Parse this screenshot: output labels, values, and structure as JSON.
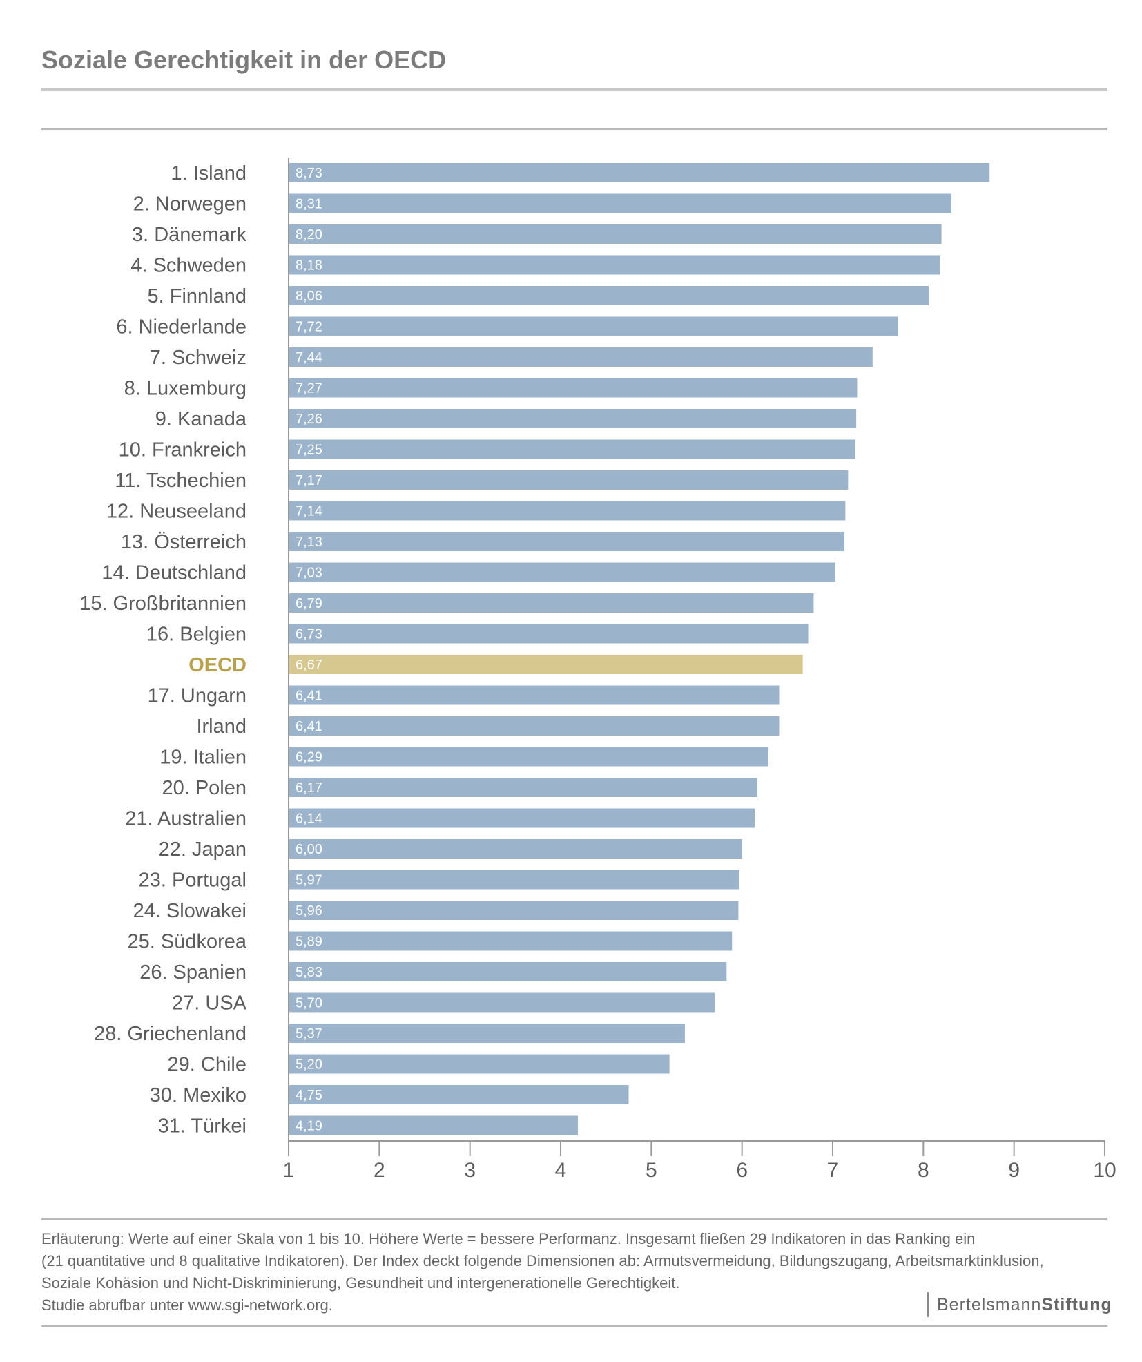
{
  "title": "Soziale Gerechtigkeit in der OECD",
  "colors": {
    "bar": "#9bb4cc",
    "highlight": "#d7c890",
    "highlight_text": "#b9a14c",
    "label": "#5b5b5b",
    "value_text": "#ffffff",
    "axis": "#9a9a9a"
  },
  "chart_data": {
    "type": "bar",
    "orientation": "horizontal",
    "categories": [
      "1. Island",
      "2. Norwegen",
      "3. Dänemark",
      "4. Schweden",
      "5. Finnland",
      "6. Niederlande",
      "7. Schweiz",
      "8. Luxemburg",
      "9. Kanada",
      "10. Frankreich",
      "11. Tschechien",
      "12. Neuseeland",
      "13. Österreich",
      "14. Deutschland",
      "15. Großbritannien",
      "16. Belgien",
      "OECD",
      "17. Ungarn",
      "Irland",
      "19. Italien",
      "20. Polen",
      "21. Australien",
      "22. Japan",
      "23. Portugal",
      "24. Slowakei",
      "25. Südkorea",
      "26. Spanien",
      "27. USA",
      "28. Griechenland",
      "29. Chile",
      "30. Mexiko",
      "31. Türkei"
    ],
    "values": [
      8.73,
      8.31,
      8.2,
      8.18,
      8.06,
      7.72,
      7.44,
      7.27,
      7.26,
      7.25,
      7.17,
      7.14,
      7.13,
      7.03,
      6.79,
      6.73,
      6.67,
      6.41,
      6.41,
      6.29,
      6.17,
      6.14,
      6.0,
      5.97,
      5.96,
      5.89,
      5.83,
      5.7,
      5.37,
      5.2,
      4.75,
      4.19
    ],
    "value_labels": [
      "8,73",
      "8,31",
      "8,20",
      "8,18",
      "8,06",
      "7,72",
      "7,44",
      "7,27",
      "7,26",
      "7,25",
      "7,17",
      "7,14",
      "7,13",
      "7,03",
      "6,79",
      "6,73",
      "6,67",
      "6,41",
      "6,41",
      "6,29",
      "6,17",
      "6,14",
      "6,00",
      "5,97",
      "5,96",
      "5,89",
      "5,83",
      "5,70",
      "5,37",
      "5,20",
      "4,75",
      "4,19"
    ],
    "highlight": "OECD",
    "xlim": [
      1,
      10
    ],
    "xticks": [
      "1",
      "2",
      "3",
      "4",
      "5",
      "6",
      "7",
      "8",
      "9",
      "10"
    ],
    "grid": false
  },
  "footnote": {
    "lines": [
      "Erläuterung: Werte auf einer Skala von 1 bis 10. Höhere Werte = bessere Performanz. Insgesamt fließen 29 Indikatoren in das Ranking ein",
      "(21 quantitative und 8 qualitative Indikatoren). Der Index deckt folgende Dimensionen ab: Armutsvermeidung, Bildungszugang, Arbeitsmarktinklusion,",
      "Soziale Kohäsion und Nicht-Diskriminierung, Gesundheit und intergenerationelle Gerechtigkeit.",
      "Studie abrufbar unter www.sgi-network.org."
    ]
  },
  "brand": {
    "part1": "Bertelsmann",
    "part2": "Stiftung"
  }
}
